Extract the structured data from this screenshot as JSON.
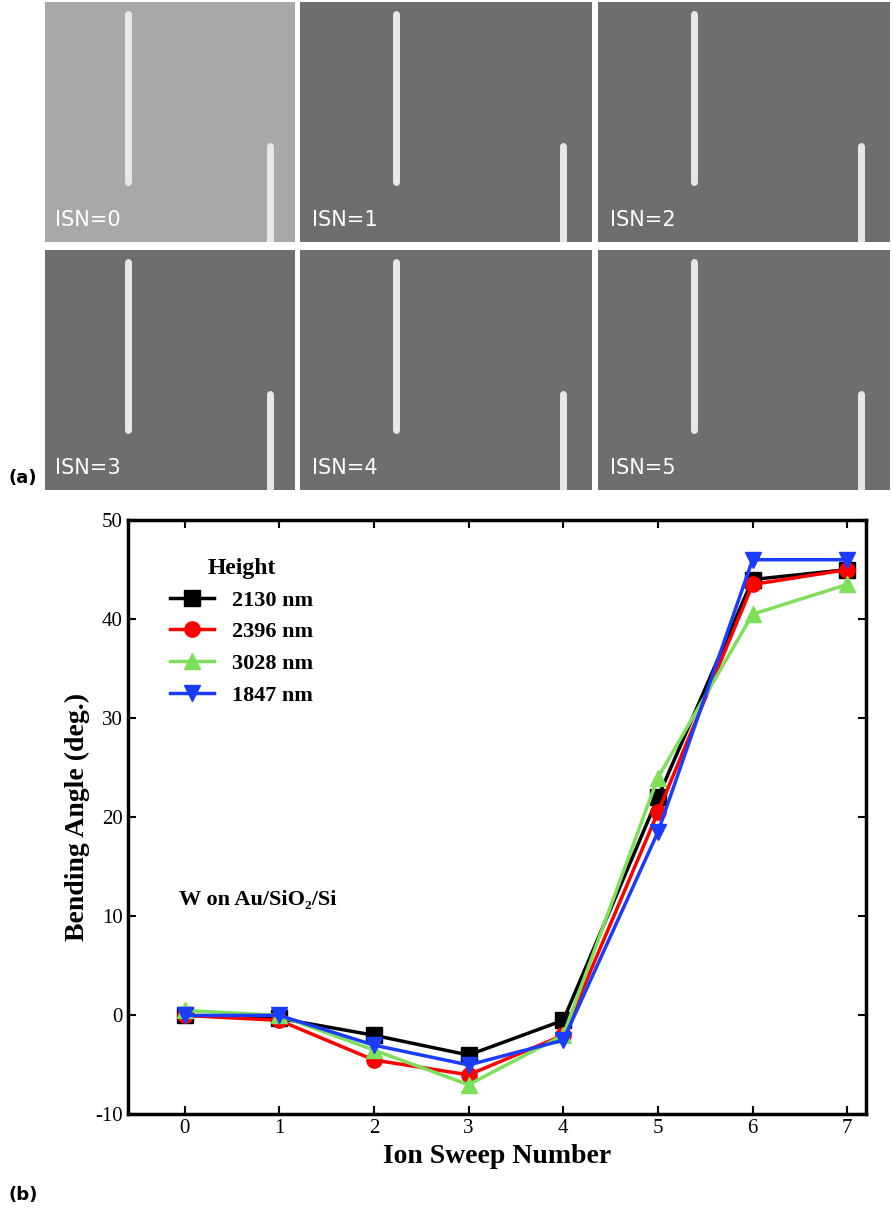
{
  "panel_a": {
    "label": "(a)",
    "image_labels": [
      "ISN=0",
      "ISN=1",
      "ISN=2",
      "ISN=3",
      "ISN=4",
      "ISN=5"
    ]
  },
  "chart_data": {
    "type": "line",
    "panel_label": "(b)",
    "x_label": "Ion Sweep Number",
    "y_label": "Bending Angle (deg.)",
    "legend_title": "Height",
    "annotations": [
      "W on Au/SiO₂/Si"
    ],
    "x": [
      0,
      1,
      2,
      3,
      4,
      5,
      6,
      7
    ],
    "series": [
      {
        "name": "2130 nm",
        "color": "#000000",
        "marker": "square",
        "values": [
          0,
          -0.3,
          -2,
          -4,
          -0.5,
          22,
          44,
          45
        ]
      },
      {
        "name": "2396 nm",
        "color": "#ff0000",
        "marker": "circle",
        "values": [
          0,
          -0.5,
          -4.5,
          -6,
          -2,
          20.5,
          43.5,
          45
        ]
      },
      {
        "name": "3028 nm",
        "color": "#7ee05a",
        "marker": "triangle_up",
        "values": [
          0.5,
          0,
          -3.5,
          -7,
          -2,
          24,
          40.5,
          43.5
        ]
      },
      {
        "name": "1847 nm",
        "color": "#1a3cff",
        "marker": "triangle_down",
        "values": [
          0,
          0,
          -3,
          -5,
          -2.5,
          18.5,
          46,
          46
        ]
      }
    ],
    "xlim": [
      -0.6,
      7.2
    ],
    "xticks": [
      0,
      1,
      2,
      3,
      4,
      5,
      6,
      7
    ],
    "ylim": [
      -10,
      50
    ],
    "yticks": [
      -10,
      0,
      10,
      20,
      30,
      40,
      50
    ],
    "legend": "upper left",
    "grid": false
  }
}
